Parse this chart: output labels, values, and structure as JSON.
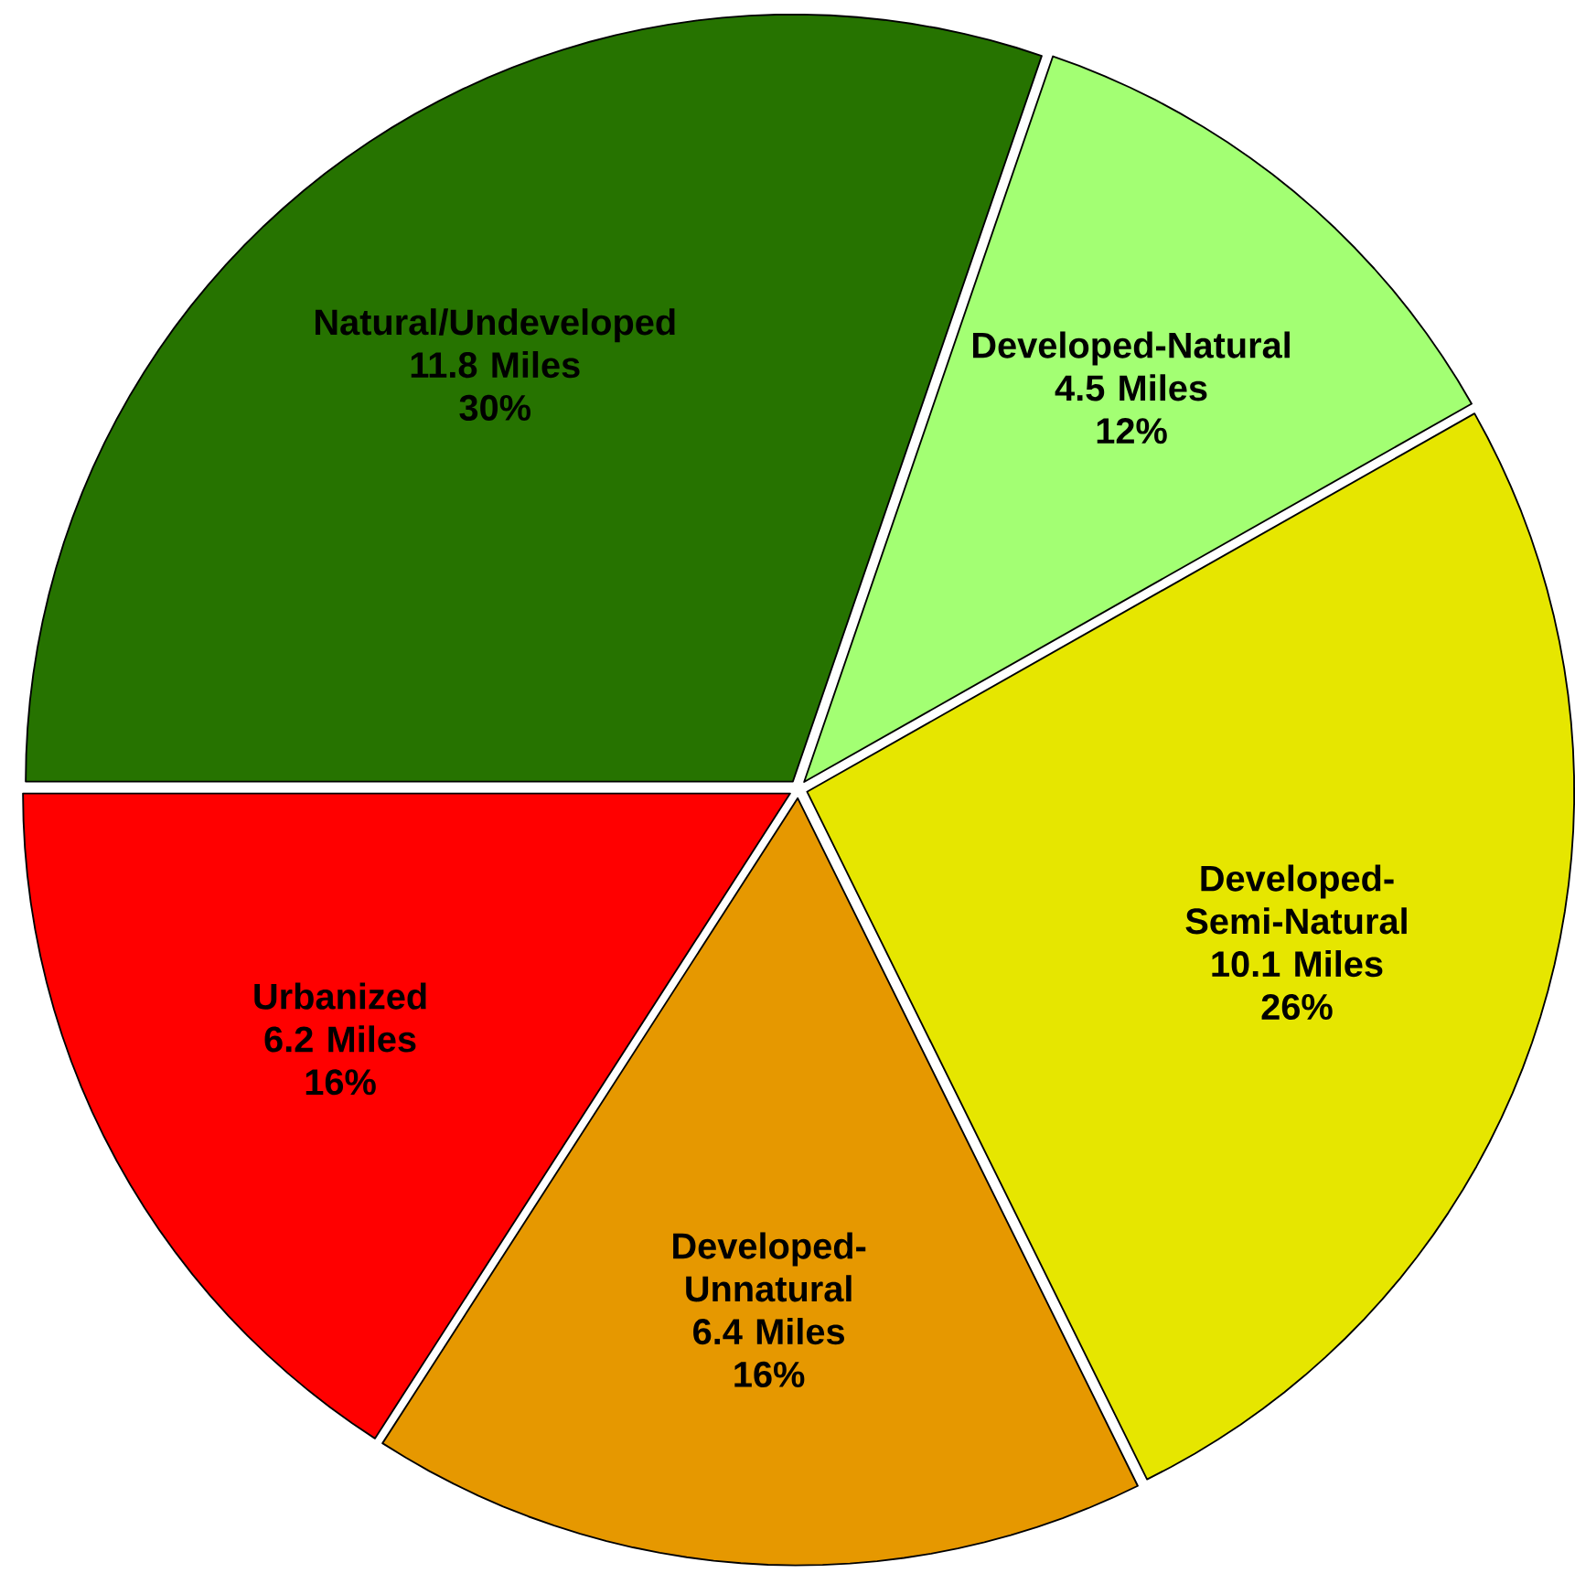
{
  "chart_data": {
    "type": "pie",
    "categories": [
      "Natural/Undeveloped",
      "Developed-Natural",
      "Developed-Semi-Natural",
      "Developed-Unnatural",
      "Urbanized"
    ],
    "values": [
      11.8,
      4.5,
      10.1,
      6.4,
      6.2
    ],
    "value_labels": [
      "11.8 Miles",
      "4.5 Miles",
      "10.1 Miles",
      "6.4 Miles",
      "6.2 Miles"
    ],
    "annotations": [
      "30%",
      "12%",
      "26%",
      "16%",
      "16%"
    ],
    "colors": [
      "#267300",
      "#a3ff73",
      "#e6e600",
      "#e69800",
      "#ff0000"
    ]
  }
}
